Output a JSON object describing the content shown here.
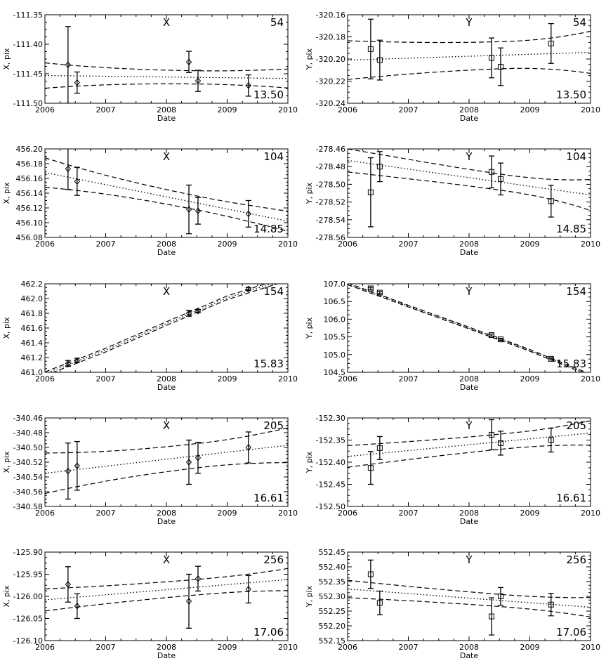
{
  "chart_data": [
    {
      "type": "scatter",
      "title": "X",
      "star": "54",
      "mag": "13.50",
      "marker": "diamond",
      "xlabel": "Date",
      "ylabel": "X, pix",
      "xlim": [
        2006,
        2010
      ],
      "ylim": [
        -111.5,
        -111.35
      ],
      "yticks": [
        "-111.50",
        "-111.45",
        "-111.40",
        "-111.35"
      ],
      "points": [
        {
          "x": 2006.38,
          "y": -111.435,
          "err": 0.065
        },
        {
          "x": 2006.53,
          "y": -111.465,
          "err": 0.018
        },
        {
          "x": 2008.37,
          "y": -111.43,
          "err": 0.018
        },
        {
          "x": 2008.52,
          "y": -111.462,
          "err": 0.018
        },
        {
          "x": 2009.35,
          "y": -111.47,
          "err": 0.018
        }
      ],
      "fit": [
        -111.453,
        -111.458
      ],
      "band_upper": [
        -111.432,
        -111.44
      ],
      "band_lower": [
        -111.475,
        -111.472
      ]
    },
    {
      "type": "scatter",
      "title": "Y",
      "star": "54",
      "mag": "13.50",
      "marker": "square",
      "xlabel": "Date",
      "ylabel": "Y, pix",
      "xlim": [
        2006,
        2010
      ],
      "ylim": [
        -320.24,
        -320.16
      ],
      "yticks": [
        "-320.24",
        "-320.22",
        "-320.20",
        "-320.18",
        "-320.16"
      ],
      "points": [
        {
          "x": 2006.38,
          "y": -320.191,
          "err": 0.027
        },
        {
          "x": 2006.53,
          "y": -320.201,
          "err": 0.018
        },
        {
          "x": 2008.37,
          "y": -320.199,
          "err": 0.018
        },
        {
          "x": 2008.52,
          "y": -320.207,
          "err": 0.017
        },
        {
          "x": 2009.35,
          "y": -320.186,
          "err": 0.018
        }
      ],
      "fit": [
        -320.201,
        -320.194
      ],
      "band_upper": [
        -320.185,
        -320.176
      ],
      "band_lower": [
        -320.22,
        -320.214
      ]
    },
    {
      "type": "scatter",
      "title": "X",
      "star": "104",
      "mag": "14.85",
      "marker": "diamond",
      "xlabel": "Date",
      "ylabel": "X, pix",
      "xlim": [
        2006,
        2010
      ],
      "ylim": [
        456.08,
        456.2
      ],
      "yticks": [
        "456.08",
        "456.10",
        "456.12",
        "456.14",
        "456.16",
        "456.18",
        "456.20"
      ],
      "points": [
        {
          "x": 2006.38,
          "y": 456.173,
          "err": 0.028
        },
        {
          "x": 2006.53,
          "y": 456.156,
          "err": 0.019
        },
        {
          "x": 2008.37,
          "y": 456.118,
          "err": 0.033
        },
        {
          "x": 2008.52,
          "y": 456.116,
          "err": 0.018
        },
        {
          "x": 2009.35,
          "y": 456.112,
          "err": 0.018
        }
      ],
      "fit": [
        456.168,
        456.102
      ],
      "band_upper": [
        456.187,
        456.113
      ],
      "band_lower": [
        456.147,
        456.086
      ]
    },
    {
      "type": "scatter",
      "title": "Y",
      "star": "104",
      "mag": "14.85",
      "marker": "square",
      "xlabel": "Date",
      "ylabel": "Y, pix",
      "xlim": [
        2006,
        2010
      ],
      "ylim": [
        -278.56,
        -278.46
      ],
      "yticks": [
        "-278.56",
        "-278.54",
        "-278.52",
        "-278.50",
        "-278.48",
        "-278.46"
      ],
      "points": [
        {
          "x": 2006.38,
          "y": -278.509,
          "err": 0.039
        },
        {
          "x": 2006.53,
          "y": -278.48,
          "err": 0.017
        },
        {
          "x": 2008.37,
          "y": -278.486,
          "err": 0.018
        },
        {
          "x": 2008.52,
          "y": -278.494,
          "err": 0.018
        },
        {
          "x": 2009.35,
          "y": -278.519,
          "err": 0.018
        }
      ],
      "fit": [
        -278.473,
        -278.512
      ],
      "band_upper": [
        -278.46,
        -278.496
      ],
      "band_lower": [
        -278.486,
        -278.531
      ]
    },
    {
      "type": "scatter",
      "title": "X",
      "star": "154",
      "mag": "15.83",
      "marker": "diamond",
      "xlabel": "Date",
      "ylabel": "X, pix",
      "xlim": [
        2006,
        2010
      ],
      "ylim": [
        461.0,
        462.2
      ],
      "yticks": [
        "461.0",
        "461.2",
        "461.4",
        "461.6",
        "461.8",
        "462.0",
        "462.2"
      ],
      "points": [
        {
          "x": 2006.38,
          "y": 461.12,
          "err": 0.04
        },
        {
          "x": 2006.53,
          "y": 461.16,
          "err": 0.03
        },
        {
          "x": 2008.37,
          "y": 461.8,
          "err": 0.04
        },
        {
          "x": 2008.52,
          "y": 461.83,
          "err": 0.02
        },
        {
          "x": 2009.35,
          "y": 462.13,
          "err": 0.02
        }
      ],
      "curve": [
        [
          2006.0,
          460.98
        ],
        [
          2007.0,
          461.3
        ],
        [
          2008.0,
          461.66
        ],
        [
          2009.0,
          462.01
        ],
        [
          2010.0,
          462.27
        ]
      ],
      "band_width": 0.025
    },
    {
      "type": "scatter",
      "title": "Y",
      "star": "154",
      "mag": "15.83",
      "marker": "square",
      "xlabel": "Date",
      "ylabel": "Y, pix",
      "xlim": [
        2006,
        2010
      ],
      "ylim": [
        104.5,
        107.0
      ],
      "yticks": [
        "104.5",
        "105.0",
        "105.5",
        "106.0",
        "106.5",
        "107.0"
      ],
      "points": [
        {
          "x": 2006.38,
          "y": 106.87,
          "err": 0.03
        },
        {
          "x": 2006.53,
          "y": 106.75,
          "err": 0.03
        },
        {
          "x": 2008.37,
          "y": 105.55,
          "err": 0.03
        },
        {
          "x": 2008.52,
          "y": 105.43,
          "err": 0.03
        },
        {
          "x": 2009.35,
          "y": 104.88,
          "err": 0.03
        }
      ],
      "curve": [
        [
          2006.0,
          107.0
        ],
        [
          2007.0,
          106.37
        ],
        [
          2008.0,
          105.75
        ],
        [
          2009.0,
          105.12
        ],
        [
          2010.0,
          104.42
        ]
      ],
      "band_width": 0.025
    },
    {
      "type": "scatter",
      "title": "X",
      "star": "205",
      "mag": "16.61",
      "marker": "diamond",
      "xlabel": "Date",
      "ylabel": "X, pix",
      "xlim": [
        2006,
        2010
      ],
      "ylim": [
        -340.58,
        -340.46
      ],
      "yticks": [
        "-340.58",
        "-340.56",
        "-340.54",
        "-340.52",
        "-340.50",
        "-340.48",
        "-340.46"
      ],
      "points": [
        {
          "x": 2006.38,
          "y": -340.532,
          "err": 0.038
        },
        {
          "x": 2006.53,
          "y": -340.525,
          "err": 0.033
        },
        {
          "x": 2008.37,
          "y": -340.52,
          "err": 0.03
        },
        {
          "x": 2008.52,
          "y": -340.514,
          "err": 0.021
        },
        {
          "x": 2009.35,
          "y": -340.5,
          "err": 0.021
        }
      ],
      "fit": [
        -340.535,
        -340.497
      ],
      "band_upper": [
        -340.507,
        -340.473
      ],
      "band_lower": [
        -340.562,
        -340.52
      ]
    },
    {
      "type": "scatter",
      "title": "Y",
      "star": "205",
      "mag": "16.61",
      "marker": "square",
      "xlabel": "Date",
      "ylabel": "Y, pix",
      "xlim": [
        2006,
        2010
      ],
      "ylim": [
        -152.5,
        -152.3
      ],
      "yticks": [
        "-152.50",
        "-152.45",
        "-152.40",
        "-152.35",
        "-152.30"
      ],
      "points": [
        {
          "x": 2006.38,
          "y": -152.413,
          "err": 0.037
        },
        {
          "x": 2006.53,
          "y": -152.368,
          "err": 0.026
        },
        {
          "x": 2008.37,
          "y": -152.338,
          "err": 0.034
        },
        {
          "x": 2008.52,
          "y": -152.357,
          "err": 0.027
        },
        {
          "x": 2009.35,
          "y": -152.35,
          "err": 0.027
        }
      ],
      "fit": [
        -152.387,
        -152.334
      ],
      "band_upper": [
        -152.362,
        -152.307
      ],
      "band_lower": [
        -152.411,
        -152.362
      ]
    },
    {
      "type": "scatter",
      "title": "X",
      "star": "256",
      "mag": "17.06",
      "marker": "diamond",
      "xlabel": "Date",
      "ylabel": "X, pix",
      "xlim": [
        2006,
        2010
      ],
      "ylim": [
        -126.1,
        -125.9
      ],
      "yticks": [
        "-126.10",
        "-126.05",
        "-126.00",
        "-125.95",
        "-125.90"
      ],
      "points": [
        {
          "x": 2006.38,
          "y": -125.973,
          "err": 0.04
        },
        {
          "x": 2006.53,
          "y": -126.022,
          "err": 0.028
        },
        {
          "x": 2008.37,
          "y": -126.011,
          "err": 0.061
        },
        {
          "x": 2008.52,
          "y": -125.96,
          "err": 0.028
        },
        {
          "x": 2009.35,
          "y": -125.984,
          "err": 0.031
        }
      ],
      "fit": [
        -126.008,
        -125.962
      ],
      "band_upper": [
        -125.982,
        -125.935
      ],
      "band_lower": [
        -126.032,
        -125.985
      ]
    },
    {
      "type": "scatter",
      "title": "Y",
      "star": "256",
      "mag": "17.06",
      "marker": "square",
      "xlabel": "Date",
      "ylabel": "Y, pix",
      "xlim": [
        2006,
        2010
      ],
      "ylim": [
        552.15,
        552.45
      ],
      "yticks": [
        "552.15",
        "552.20",
        "552.25",
        "552.30",
        "552.35",
        "552.40",
        "552.45"
      ],
      "points": [
        {
          "x": 2006.38,
          "y": 552.375,
          "err": 0.048
        },
        {
          "x": 2006.53,
          "y": 552.278,
          "err": 0.04
        },
        {
          "x": 2008.37,
          "y": 552.232,
          "err": 0.063
        },
        {
          "x": 2008.52,
          "y": 552.3,
          "err": 0.03
        },
        {
          "x": 2009.35,
          "y": 552.272,
          "err": 0.038
        }
      ],
      "fit": [
        552.325,
        552.263
      ],
      "band_upper": [
        552.355,
        552.298
      ],
      "band_lower": [
        552.296,
        552.232
      ]
    }
  ],
  "x_ticks": [
    "2006",
    "2007",
    "2008",
    "2009",
    "2010"
  ]
}
